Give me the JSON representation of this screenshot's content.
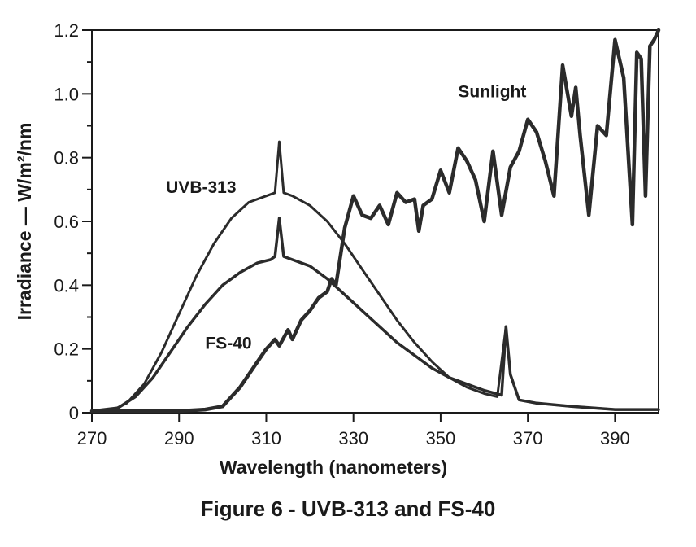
{
  "figure": {
    "caption": "Figure 6 - UVB-313 and FS-40"
  },
  "chart_data": {
    "type": "line",
    "title": "Figure 6 - UVB-313 and FS-40",
    "xlabel": "Wavelength (nanometers)",
    "ylabel": "Irradiance — W/m²/nm",
    "xlim": [
      270,
      400
    ],
    "ylim": [
      0,
      1.2
    ],
    "x_ticks": [
      270,
      290,
      310,
      330,
      350,
      370,
      390
    ],
    "y_ticks": [
      0,
      0.2,
      0.4,
      0.6,
      0.8,
      1.0,
      1.2
    ],
    "y_tick_labels": [
      "0",
      "0.2",
      "0.4",
      "0.6",
      "0.8",
      "1.0",
      "1.2"
    ],
    "grid": false,
    "legend": "inline labels",
    "series": [
      {
        "name": "UVB-313",
        "label_pos": [
          287,
          0.69
        ],
        "x": [
          270,
          275,
          278,
          282,
          286,
          290,
          294,
          298,
          302,
          306,
          310,
          312,
          313,
          314,
          316,
          320,
          324,
          328,
          332,
          336,
          340,
          344,
          348,
          352,
          356,
          360,
          363,
          365,
          366,
          368,
          372,
          380,
          390,
          400
        ],
        "y": [
          0.005,
          0.01,
          0.03,
          0.09,
          0.19,
          0.31,
          0.43,
          0.53,
          0.61,
          0.66,
          0.68,
          0.69,
          0.85,
          0.69,
          0.68,
          0.65,
          0.6,
          0.53,
          0.45,
          0.37,
          0.29,
          0.22,
          0.16,
          0.11,
          0.08,
          0.06,
          0.05,
          0.27,
          0.12,
          0.04,
          0.03,
          0.02,
          0.01,
          0.01
        ]
      },
      {
        "name": "FS-40",
        "label_pos": [
          296,
          0.2
        ],
        "x": [
          270,
          276,
          280,
          284,
          288,
          292,
          296,
          300,
          304,
          308,
          311,
          312,
          313,
          314,
          316,
          320,
          324,
          328,
          332,
          336,
          340,
          344,
          348,
          352,
          356,
          360,
          364,
          365,
          366,
          368,
          372,
          380,
          390,
          400
        ],
        "y": [
          0.005,
          0.015,
          0.05,
          0.11,
          0.19,
          0.27,
          0.34,
          0.4,
          0.44,
          0.47,
          0.48,
          0.49,
          0.61,
          0.49,
          0.48,
          0.46,
          0.42,
          0.37,
          0.32,
          0.27,
          0.22,
          0.18,
          0.14,
          0.11,
          0.09,
          0.07,
          0.055,
          0.27,
          0.12,
          0.04,
          0.03,
          0.02,
          0.01,
          0.01
        ]
      },
      {
        "name": "Sunlight",
        "label_pos": [
          354,
          0.99
        ],
        "x": [
          270,
          290,
          296,
          300,
          302,
          304,
          306,
          308,
          310,
          312,
          313,
          315,
          316,
          318,
          320,
          322,
          324,
          325,
          326,
          328,
          330,
          332,
          334,
          336,
          338,
          340,
          342,
          344,
          345,
          346,
          348,
          350,
          352,
          354,
          356,
          358,
          360,
          362,
          364,
          366,
          368,
          370,
          372,
          374,
          376,
          378,
          380,
          381,
          382,
          384,
          386,
          388,
          390,
          392,
          394,
          395,
          396,
          397,
          398,
          399,
          400
        ],
        "y": [
          0.005,
          0.005,
          0.01,
          0.02,
          0.05,
          0.08,
          0.12,
          0.16,
          0.2,
          0.23,
          0.21,
          0.26,
          0.23,
          0.29,
          0.32,
          0.36,
          0.38,
          0.42,
          0.4,
          0.58,
          0.68,
          0.62,
          0.61,
          0.65,
          0.59,
          0.69,
          0.66,
          0.67,
          0.57,
          0.65,
          0.67,
          0.76,
          0.69,
          0.83,
          0.79,
          0.73,
          0.6,
          0.82,
          0.62,
          0.77,
          0.82,
          0.92,
          0.88,
          0.79,
          0.68,
          1.09,
          0.93,
          1.02,
          0.87,
          0.62,
          0.9,
          0.87,
          1.17,
          1.05,
          0.59,
          1.13,
          1.11,
          0.68,
          1.15,
          1.17,
          1.2
        ]
      }
    ]
  }
}
